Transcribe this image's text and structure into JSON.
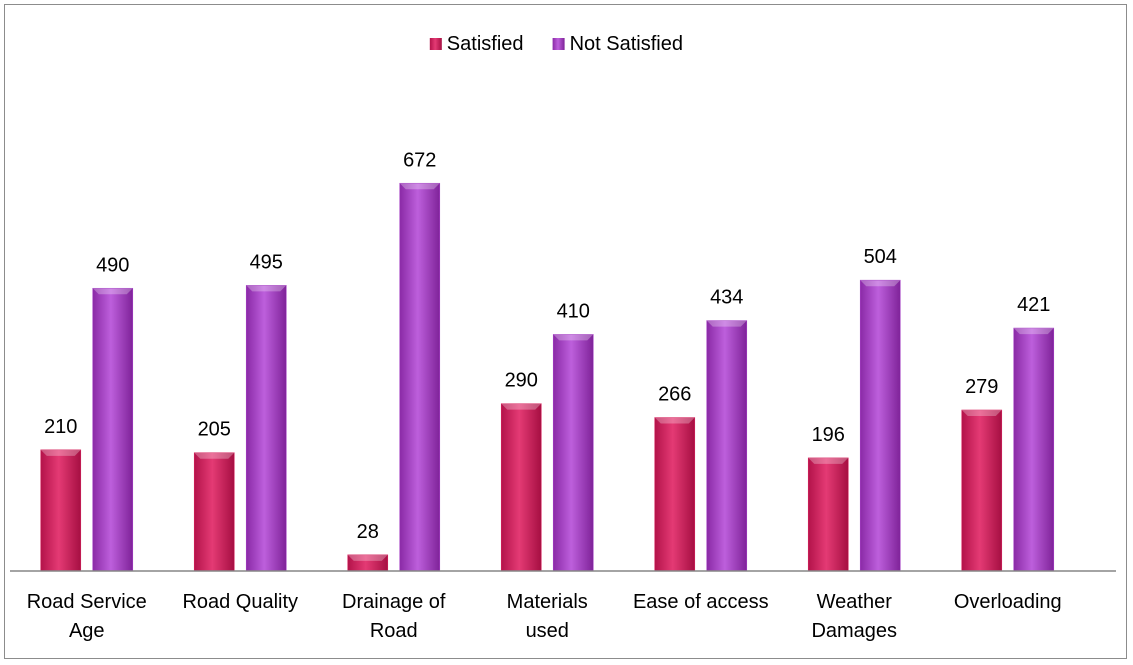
{
  "chart_data": {
    "type": "bar",
    "categories": [
      [
        "Road Service",
        "Age"
      ],
      [
        "Road Quality"
      ],
      [
        "Drainage of",
        "Road"
      ],
      [
        "Materials",
        "used"
      ],
      [
        "Ease of access"
      ],
      [
        "Weather",
        "Damages"
      ],
      [
        "Overloading"
      ]
    ],
    "series": [
      {
        "name": "Satisfied",
        "values": [
          210,
          205,
          28,
          290,
          266,
          196,
          279
        ],
        "color": "#d6245e"
      },
      {
        "name": "Not Satisfied",
        "values": [
          490,
          495,
          672,
          410,
          434,
          504,
          421
        ],
        "color": "#a43fc4"
      }
    ],
    "title": "",
    "xlabel": "",
    "ylabel": "",
    "ylim": [
      0,
      700
    ],
    "grid": false,
    "legend": "top-center",
    "data_labels": true
  }
}
